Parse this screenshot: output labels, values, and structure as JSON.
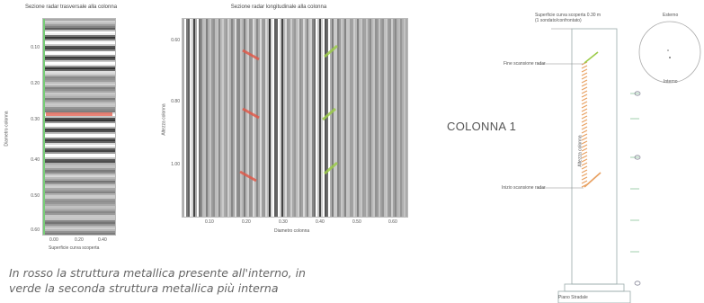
{
  "left_panel": {
    "title": "Sezione radar trasversale alla colonna",
    "y_ticks": [
      "0.10",
      "0.20",
      "0.30",
      "0.40",
      "0.50",
      "0.60"
    ],
    "x_ticks": [
      "0.00",
      "0.20",
      "0.40"
    ],
    "ylabel": "Diametro colonna",
    "xlabel": "Superficie curva scoperta"
  },
  "middle_panel": {
    "title": "Sezione radar longitudinale alla colonna",
    "y_ticks": [
      "0.60",
      "0.80",
      "1.00"
    ],
    "x_ticks": [
      "0.10",
      "0.20",
      "0.30",
      "0.40",
      "0.50",
      "0.60"
    ],
    "ylabel": "Altezza colonna",
    "xlabel": "Diametro colonna"
  },
  "caption": {
    "line1": "In rosso la struttura metallica presente all'interno, in",
    "line2": "verde la seconda struttura metallica più interna"
  },
  "colors": {
    "red_marker": "#e05a4a",
    "green_marker": "#9ccc4a",
    "hatch": "#e8a060"
  },
  "diagram": {
    "colonna_label": "COLONNA 1",
    "surface_label_1": "Superficie curva scoperta 0.30 m",
    "surface_label_2": "(1 sondato/confrontato)",
    "fine_label": "Fine scansione radar",
    "inizio_label": "Inizio scansione radar",
    "altezza_label": "Altezza colonna",
    "base_label": "Piano Stradale",
    "esterno_label": "Esterno",
    "interno_label": "Interno"
  }
}
